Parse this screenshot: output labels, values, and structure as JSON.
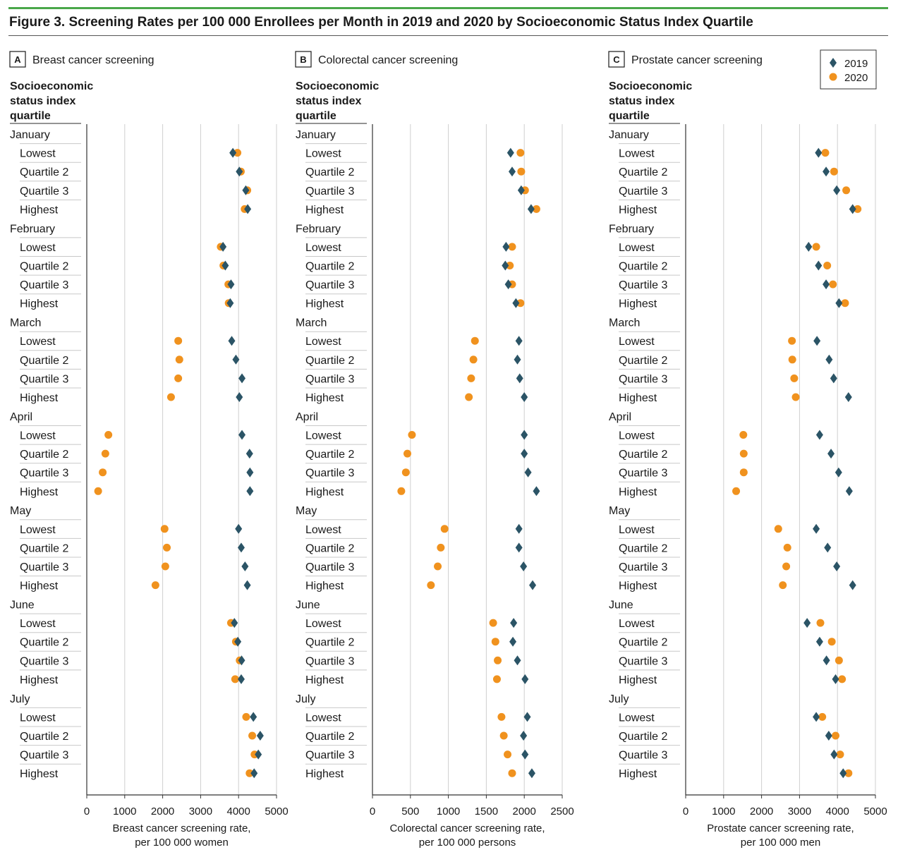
{
  "figure_title": "Figure 3. Screening Rates per 100 000 Enrollees per Month in 2019 and 2020 by Socioeconomic Status Index Quartile",
  "row_header": [
    "Socioeconomic",
    "status index",
    "quartile"
  ],
  "legend": [
    {
      "label": "2019",
      "color": "#2b5466",
      "marker": "diamond"
    },
    {
      "label": "2020",
      "color": "#f0921e",
      "marker": "circle"
    }
  ],
  "months": [
    "January",
    "February",
    "March",
    "April",
    "May",
    "June",
    "July"
  ],
  "quartiles": [
    "Lowest",
    "Quartile 2",
    "Quartile 3",
    "Highest"
  ],
  "chart_data": [
    {
      "type": "scatter",
      "letter": "A",
      "title": "Breast cancer screening",
      "xlabel": [
        "Breast cancer screening rate,",
        "per 100 000 women"
      ],
      "xlim": [
        0,
        5000
      ],
      "xticks": [
        0,
        1000,
        2000,
        3000,
        4000,
        5000
      ],
      "grid": true,
      "series": [
        {
          "name": "2019",
          "values": [
            3850,
            4020,
            4190,
            4240,
            3590,
            3650,
            3800,
            3780,
            3820,
            3930,
            4090,
            4020,
            4090,
            4290,
            4300,
            4300,
            4000,
            4070,
            4170,
            4230,
            3890,
            3980,
            4080,
            4070,
            4390,
            4570,
            4520,
            4410
          ]
        },
        {
          "name": "2020",
          "values": [
            3970,
            4060,
            4230,
            4160,
            3530,
            3600,
            3730,
            3740,
            2410,
            2440,
            2410,
            2220,
            570,
            490,
            420,
            300,
            2050,
            2110,
            2070,
            1810,
            3800,
            3930,
            4030,
            3910,
            4200,
            4360,
            4420,
            4290
          ]
        }
      ]
    },
    {
      "type": "scatter",
      "letter": "B",
      "title": "Colorectal cancer screening",
      "xlabel": [
        "Colorectal cancer screening rate,",
        "per 100 000 persons"
      ],
      "xlim": [
        0,
        2500
      ],
      "xticks": [
        0,
        500,
        1000,
        1500,
        2000,
        2500
      ],
      "grid": true,
      "series": [
        {
          "name": "2019",
          "values": [
            1820,
            1840,
            1960,
            2090,
            1760,
            1750,
            1790,
            1890,
            1930,
            1910,
            1940,
            2000,
            2000,
            2000,
            2050,
            2160,
            1930,
            1930,
            1990,
            2110,
            1860,
            1850,
            1910,
            2010,
            2040,
            1990,
            2010,
            2100
          ]
        },
        {
          "name": "2020",
          "values": [
            1950,
            1960,
            2010,
            2160,
            1840,
            1810,
            1840,
            1950,
            1350,
            1330,
            1300,
            1270,
            520,
            460,
            440,
            380,
            950,
            900,
            860,
            770,
            1590,
            1620,
            1650,
            1640,
            1700,
            1730,
            1780,
            1840
          ]
        }
      ]
    },
    {
      "type": "scatter",
      "letter": "C",
      "title": "Prostate cancer screening",
      "xlabel": [
        "Prostate cancer screening rate,",
        "per 100 000 men"
      ],
      "xlim": [
        0,
        5000
      ],
      "xticks": [
        0,
        1000,
        2000,
        3000,
        4000,
        5000
      ],
      "grid": true,
      "series": [
        {
          "name": "2019",
          "values": [
            3500,
            3700,
            3980,
            4400,
            3240,
            3500,
            3700,
            4040,
            3460,
            3780,
            3900,
            4290,
            3530,
            3830,
            4030,
            4310,
            3440,
            3740,
            3980,
            4400,
            3200,
            3530,
            3710,
            3950,
            3440,
            3770,
            3910,
            4150
          ]
        },
        {
          "name": "2020",
          "values": [
            3680,
            3910,
            4230,
            4530,
            3440,
            3730,
            3880,
            4200,
            2800,
            2810,
            2860,
            2900,
            1520,
            1530,
            1530,
            1330,
            2440,
            2680,
            2650,
            2560,
            3550,
            3850,
            4040,
            4120,
            3600,
            3950,
            4070,
            4290
          ]
        }
      ]
    }
  ]
}
